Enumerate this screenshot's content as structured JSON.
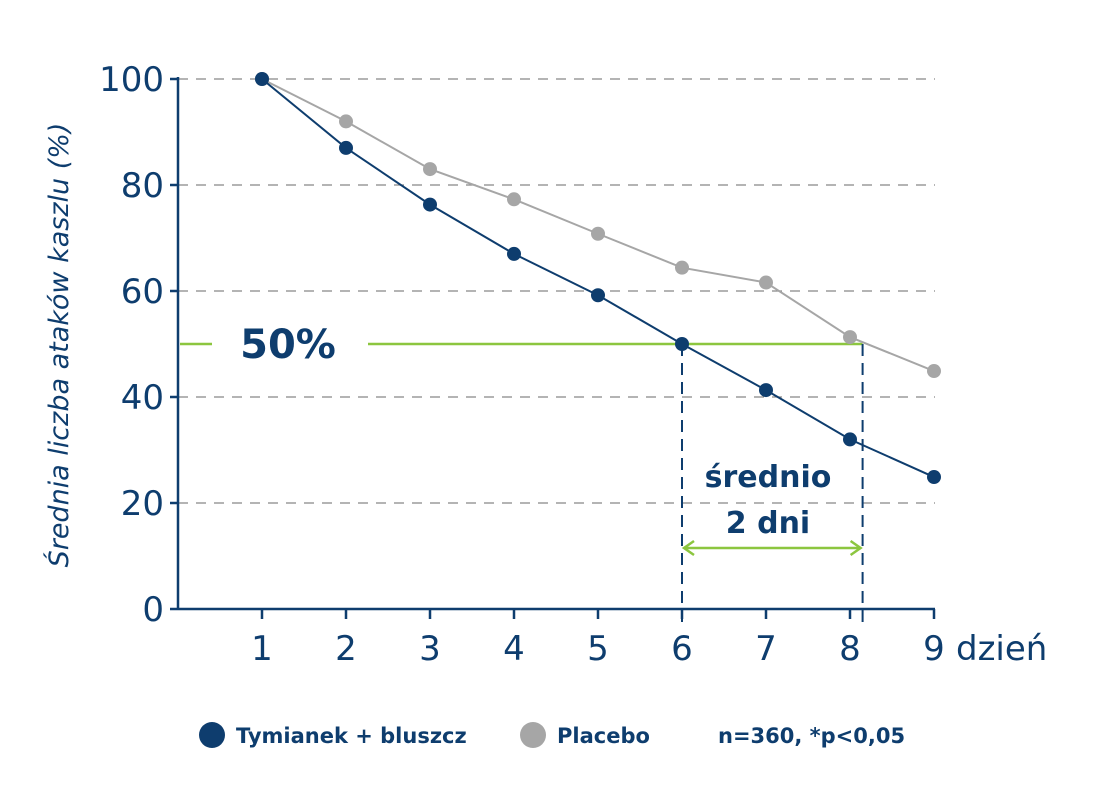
{
  "chart_data": {
    "type": "line",
    "ylabel": "Średnia liczba ataków kaszlu (%)",
    "xlabel": "dzień",
    "x": [
      1,
      2,
      3,
      4,
      5,
      6,
      7,
      8,
      9
    ],
    "xlim": [
      0,
      9
    ],
    "ylim": [
      0,
      100
    ],
    "yticks": [
      0,
      20,
      40,
      60,
      80,
      100
    ],
    "grid": "horizontal-dashed",
    "series": [
      {
        "name": "Tymianek + bluszcz",
        "color": "#0e3d6e",
        "values": [
          100,
          87,
          76.3,
          67,
          59.2,
          50,
          41.3,
          32,
          24.9
        ]
      },
      {
        "name": "Placebo",
        "color": "#a6a6a6",
        "values": [
          100,
          92,
          83,
          77.3,
          70.8,
          64.4,
          61.6,
          51.3,
          44.9
        ]
      }
    ],
    "threshold": {
      "value": 50,
      "label": "50%",
      "color": "#8cc63f"
    },
    "annotation": {
      "x_start": 6,
      "x_end": 8.15,
      "line1": "średnio",
      "line2": "2 dni"
    },
    "note": "n=360, *p<0,05",
    "legend_position": "bottom"
  }
}
